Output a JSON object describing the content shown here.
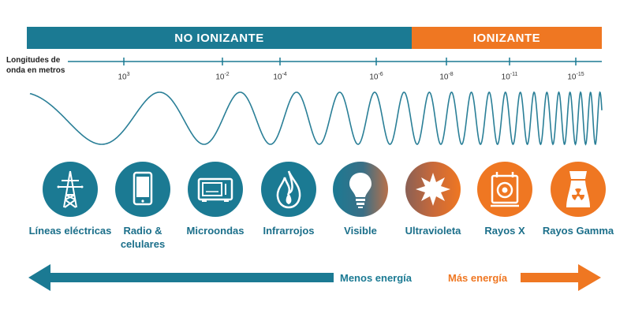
{
  "bands": {
    "non_ionizing": "NO IONIZANTE",
    "ionizing": "IONIZANTE"
  },
  "axis_label": "Longitudes de onda en metros",
  "wavelengths": [
    {
      "base": "10",
      "exp": "3"
    },
    {
      "base": "10",
      "exp": "-2"
    },
    {
      "base": "10",
      "exp": "-4"
    },
    {
      "base": "10",
      "exp": "-6"
    },
    {
      "base": "10",
      "exp": "-8"
    },
    {
      "base": "10",
      "exp": "-11"
    },
    {
      "base": "10",
      "exp": "-15"
    }
  ],
  "categories": [
    {
      "label": "Líneas eléctricas",
      "icon": "power-tower-icon"
    },
    {
      "label": "Radio & celulares",
      "icon": "cellphone-icon"
    },
    {
      "label": "Microondas",
      "icon": "microwave-icon"
    },
    {
      "label": "Infrarrojos",
      "icon": "flame-icon"
    },
    {
      "label": "Visible",
      "icon": "light-bulb-icon"
    },
    {
      "label": "Ultravioleta",
      "icon": "sun-icon"
    },
    {
      "label": "Rayos X",
      "icon": "x-ray-machine-icon"
    },
    {
      "label": "Rayos Gamma",
      "icon": "nuclear-plant-icon"
    }
  ],
  "energy": {
    "less": "Menos energía",
    "more": "Más energía"
  },
  "colors": {
    "teal": "#1b7a93",
    "orange": "#ef7722"
  }
}
